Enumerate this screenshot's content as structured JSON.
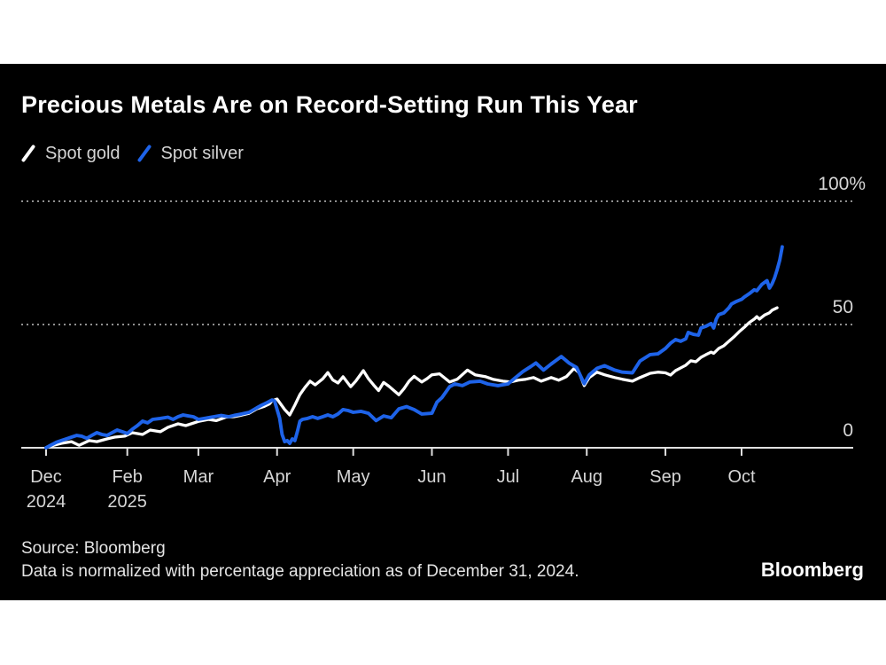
{
  "header": {
    "title": "Precious Metals Are on Record-Setting Run This Year"
  },
  "legend": {
    "items": [
      {
        "label": "Spot gold",
        "color": "#ffffff",
        "icon": "slash-icon"
      },
      {
        "label": "Spot silver",
        "color": "#1e63e9",
        "icon": "slash-icon"
      }
    ]
  },
  "footer": {
    "source": "Source: Bloomberg",
    "note": "Data is normalized with percentage appreciation as of December 31, 2024.",
    "logo": "Bloomberg"
  },
  "colors": {
    "page_background": "#ffffff",
    "panel_background": "#000000",
    "grid": "#8f8f8f",
    "axis": "#e0e0e0",
    "tick_label": "#d6d6d6",
    "gold_line": "#ffffff",
    "silver_line": "#1e63e9"
  },
  "chart_data": {
    "type": "line",
    "title": "Precious Metals Are on Record-Setting Run This Year",
    "x_unit": "days since Dec 31, 2024",
    "y_unit": "percent appreciation since Dec 31, 2024",
    "ylim": [
      0,
      105
    ],
    "grid": "horizontal dotted",
    "gridlines_pct": [
      100,
      50
    ],
    "y_axis_labels": [
      {
        "text": "100%",
        "pct": 100
      },
      {
        "text": "50",
        "pct": 50
      },
      {
        "text": "0",
        "pct": 0
      }
    ],
    "x_ticks": [
      {
        "label": "Dec",
        "sublabel": "2024",
        "day": 0
      },
      {
        "label": "Feb",
        "sublabel": "2025",
        "day": 32
      },
      {
        "label": "Mar",
        "day": 60
      },
      {
        "label": "Apr",
        "day": 91
      },
      {
        "label": "May",
        "day": 121
      },
      {
        "label": "Jun",
        "day": 152
      },
      {
        "label": "Jul",
        "day": 182
      },
      {
        "label": "Aug",
        "day": 213
      },
      {
        "label": "Sep",
        "day": 244
      },
      {
        "label": "Oct",
        "day": 274
      }
    ],
    "legend_position": "top-left",
    "series": [
      {
        "name": "Spot gold",
        "color": "#ffffff",
        "stroke_width": 3.3,
        "points": [
          [
            0,
            0
          ],
          [
            3,
            1
          ],
          [
            6,
            1.8
          ],
          [
            10,
            2.5
          ],
          [
            13,
            1
          ],
          [
            17,
            2.9
          ],
          [
            20,
            2.5
          ],
          [
            24,
            3.6
          ],
          [
            27,
            4.3
          ],
          [
            31,
            4.7
          ],
          [
            34,
            6.1
          ],
          [
            38,
            5.4
          ],
          [
            41,
            7.2
          ],
          [
            45,
            6.5
          ],
          [
            48,
            8.3
          ],
          [
            52,
            9.7
          ],
          [
            55,
            9
          ],
          [
            60,
            10.7
          ],
          [
            64,
            11.5
          ],
          [
            67,
            11
          ],
          [
            71,
            12.5
          ],
          [
            74,
            12.6
          ],
          [
            76,
            13
          ],
          [
            80,
            14
          ],
          [
            83,
            15.8
          ],
          [
            86,
            16.8
          ],
          [
            88,
            17.8
          ],
          [
            89,
            19
          ],
          [
            91,
            19.8
          ],
          [
            94,
            15.5
          ],
          [
            96,
            13.3
          ],
          [
            98,
            17.3
          ],
          [
            100,
            21.6
          ],
          [
            102,
            24.5
          ],
          [
            104,
            27
          ],
          [
            106,
            25.5
          ],
          [
            109,
            28
          ],
          [
            111,
            30.5
          ],
          [
            113,
            27.5
          ],
          [
            115,
            26.3
          ],
          [
            117,
            28.8
          ],
          [
            120,
            24.8
          ],
          [
            122,
            27
          ],
          [
            125,
            31.3
          ],
          [
            127,
            28
          ],
          [
            129,
            25.5
          ],
          [
            131,
            23.2
          ],
          [
            133,
            26.5
          ],
          [
            135,
            25
          ],
          [
            139,
            21.5
          ],
          [
            141,
            24
          ],
          [
            143,
            27
          ],
          [
            145,
            29
          ],
          [
            148,
            26.7
          ],
          [
            150,
            28
          ],
          [
            152,
            29.6
          ],
          [
            155,
            30
          ],
          [
            159,
            26.7
          ],
          [
            162,
            27.8
          ],
          [
            166,
            31.5
          ],
          [
            169,
            29.6
          ],
          [
            173,
            28.9
          ],
          [
            176,
            27.8
          ],
          [
            180,
            27
          ],
          [
            183,
            26.7
          ],
          [
            186,
            27.4
          ],
          [
            189,
            27.8
          ],
          [
            192,
            28.5
          ],
          [
            195,
            27
          ],
          [
            199,
            28.5
          ],
          [
            202,
            27.4
          ],
          [
            205,
            28.9
          ],
          [
            208,
            32.2
          ],
          [
            210,
            30.4
          ],
          [
            212,
            25.2
          ],
          [
            214,
            28.5
          ],
          [
            217,
            30.7
          ],
          [
            220,
            29.6
          ],
          [
            224,
            28.5
          ],
          [
            227,
            27.8
          ],
          [
            231,
            27
          ],
          [
            234,
            28.5
          ],
          [
            238,
            30.2
          ],
          [
            241,
            30.7
          ],
          [
            244,
            30.4
          ],
          [
            246,
            29.5
          ],
          [
            248,
            31.3
          ],
          [
            250,
            32.4
          ],
          [
            252,
            33.5
          ],
          [
            254,
            35.3
          ],
          [
            256,
            34.9
          ],
          [
            258,
            36.7
          ],
          [
            260,
            37.8
          ],
          [
            262,
            38.8
          ],
          [
            263,
            38.3
          ],
          [
            265,
            40.3
          ],
          [
            267,
            41.4
          ],
          [
            269,
            43.2
          ],
          [
            271,
            45
          ],
          [
            273,
            47
          ],
          [
            275,
            48.8
          ],
          [
            277,
            50.8
          ],
          [
            279,
            52.2
          ],
          [
            280,
            53.2
          ],
          [
            281,
            52.2
          ],
          [
            283,
            53.8
          ],
          [
            285,
            54.8
          ],
          [
            286,
            55.8
          ],
          [
            288,
            56.8
          ]
        ]
      },
      {
        "name": "Spot silver",
        "color": "#1e63e9",
        "stroke_width": 3.9,
        "points": [
          [
            0,
            0
          ],
          [
            2,
            1.1
          ],
          [
            4,
            2.2
          ],
          [
            6,
            2.9
          ],
          [
            8,
            3.6
          ],
          [
            10,
            4.3
          ],
          [
            12,
            5
          ],
          [
            14,
            4.7
          ],
          [
            16,
            3.8
          ],
          [
            18,
            5
          ],
          [
            20,
            6.1
          ],
          [
            22,
            5.4
          ],
          [
            24,
            5
          ],
          [
            26,
            6.1
          ],
          [
            28,
            7.2
          ],
          [
            30,
            6.5
          ],
          [
            32,
            5.8
          ],
          [
            34,
            7.5
          ],
          [
            36,
            9
          ],
          [
            38,
            10.8
          ],
          [
            40,
            10.1
          ],
          [
            42,
            11.5
          ],
          [
            45,
            11.9
          ],
          [
            48,
            12.4
          ],
          [
            50,
            11.5
          ],
          [
            52,
            12.6
          ],
          [
            54,
            13.3
          ],
          [
            56,
            12.9
          ],
          [
            58,
            12.6
          ],
          [
            60,
            11.5
          ],
          [
            63,
            12
          ],
          [
            66,
            12.6
          ],
          [
            69,
            13.1
          ],
          [
            72,
            12.6
          ],
          [
            74,
            13.1
          ],
          [
            77,
            13.7
          ],
          [
            80,
            14.4
          ],
          [
            83,
            16.2
          ],
          [
            85,
            17.3
          ],
          [
            87,
            18.3
          ],
          [
            89,
            19.4
          ],
          [
            90,
            19
          ],
          [
            92,
            12
          ],
          [
            93,
            5.4
          ],
          [
            94,
            2.5
          ],
          [
            95,
            2.9
          ],
          [
            96,
            1.8
          ],
          [
            97,
            3.6
          ],
          [
            98,
            2.9
          ],
          [
            99,
            6.5
          ],
          [
            100,
            10.8
          ],
          [
            101,
            11.5
          ],
          [
            103,
            11.9
          ],
          [
            105,
            12.6
          ],
          [
            107,
            11.9
          ],
          [
            109,
            12.6
          ],
          [
            111,
            13.3
          ],
          [
            113,
            12.6
          ],
          [
            115,
            13.7
          ],
          [
            117,
            15.5
          ],
          [
            119,
            15.1
          ],
          [
            121,
            14.4
          ],
          [
            124,
            14.8
          ],
          [
            127,
            14
          ],
          [
            130,
            11
          ],
          [
            133,
            12.9
          ],
          [
            136,
            12.2
          ],
          [
            139,
            15.8
          ],
          [
            142,
            16.7
          ],
          [
            145,
            15.5
          ],
          [
            148,
            13.7
          ],
          [
            152,
            14
          ],
          [
            154,
            18.5
          ],
          [
            156,
            20.4
          ],
          [
            159,
            24.8
          ],
          [
            161,
            25.9
          ],
          [
            164,
            25.2
          ],
          [
            167,
            26.7
          ],
          [
            171,
            27
          ],
          [
            174,
            25.9
          ],
          [
            178,
            25.2
          ],
          [
            182,
            25.9
          ],
          [
            185,
            28.5
          ],
          [
            188,
            31
          ],
          [
            191,
            33
          ],
          [
            193,
            34.4
          ],
          [
            196,
            31.5
          ],
          [
            199,
            34
          ],
          [
            203,
            37
          ],
          [
            206,
            34.4
          ],
          [
            209,
            32.6
          ],
          [
            212,
            26
          ],
          [
            214,
            29.6
          ],
          [
            217,
            32.2
          ],
          [
            220,
            33.3
          ],
          [
            224,
            31.5
          ],
          [
            227,
            30.7
          ],
          [
            231,
            30.4
          ],
          [
            234,
            35.2
          ],
          [
            238,
            37.8
          ],
          [
            241,
            38.1
          ],
          [
            244,
            40.3
          ],
          [
            246,
            42.4
          ],
          [
            248,
            43.9
          ],
          [
            250,
            43.2
          ],
          [
            252,
            44.2
          ],
          [
            253,
            46.8
          ],
          [
            255,
            46
          ],
          [
            257,
            45.7
          ],
          [
            258,
            48.6
          ],
          [
            260,
            49.3
          ],
          [
            262,
            50.4
          ],
          [
            263,
            48.6
          ],
          [
            264,
            52.2
          ],
          [
            265,
            54
          ],
          [
            267,
            54.7
          ],
          [
            269,
            56.8
          ],
          [
            270,
            58.3
          ],
          [
            272,
            59.4
          ],
          [
            274,
            60.2
          ],
          [
            275,
            61.1
          ],
          [
            277,
            62.5
          ],
          [
            279,
            64.1
          ],
          [
            280,
            63.7
          ],
          [
            282,
            66.3
          ],
          [
            284,
            67.8
          ],
          [
            285,
            64.8
          ],
          [
            286,
            66.5
          ],
          [
            287,
            69
          ],
          [
            288,
            72.2
          ],
          [
            289,
            76
          ],
          [
            290,
            81.5
          ]
        ]
      }
    ]
  }
}
